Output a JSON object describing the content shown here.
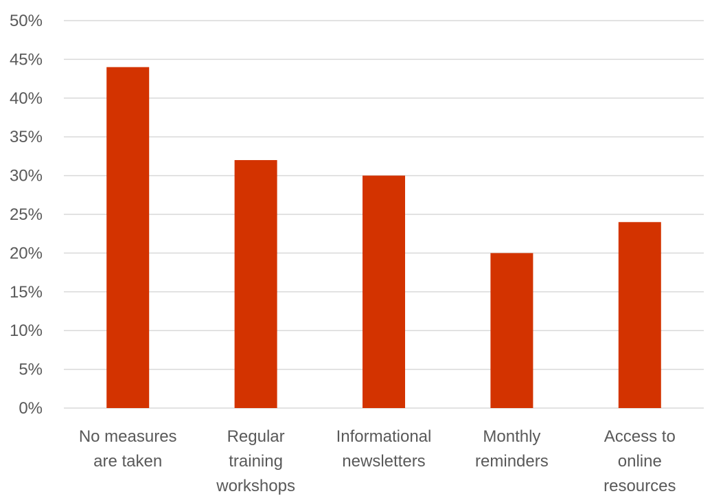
{
  "chart_data": {
    "type": "bar",
    "title": "",
    "xlabel": "",
    "ylabel": "",
    "categories": [
      [
        "No measures",
        "are taken"
      ],
      [
        "Regular",
        "training",
        "workshops"
      ],
      [
        "Informational",
        "newsletters"
      ],
      [
        "Monthly",
        "reminders"
      ],
      [
        "Access to",
        "online",
        "resources"
      ]
    ],
    "values": [
      44,
      32,
      30,
      20,
      24
    ],
    "ylim": [
      0,
      50
    ],
    "ytick_step": 5,
    "ytick_suffix": "%",
    "grid": true,
    "legend": "none",
    "bar_color": "#d33300"
  }
}
